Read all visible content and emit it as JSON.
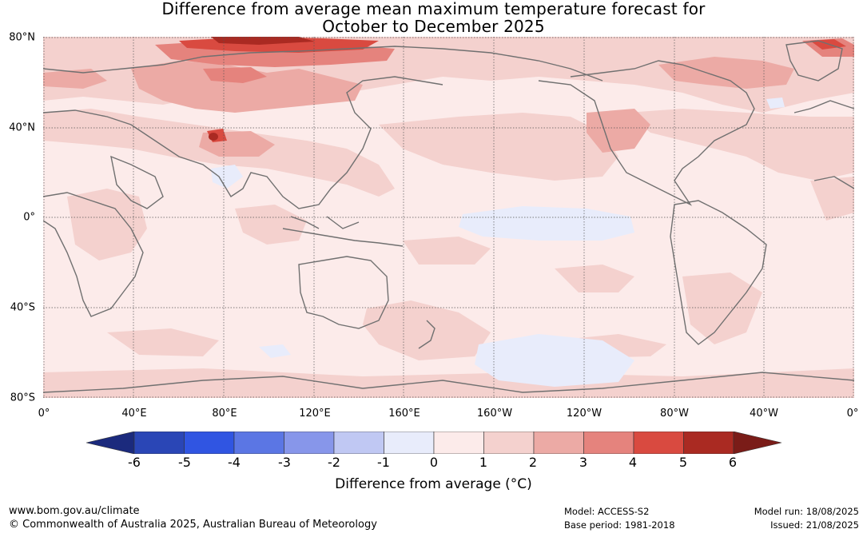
{
  "title": {
    "line1": "Difference from average mean maximum temperature forecast for",
    "line2": "October to December 2025"
  },
  "map": {
    "latitude_labels": [
      "80°N",
      "40°N",
      "0°",
      "40°S",
      "80°S"
    ],
    "longitude_labels": [
      "0°",
      "40°E",
      "80°E",
      "120°E",
      "160°E",
      "160°W",
      "120°W",
      "80°W",
      "40°W",
      "0°"
    ],
    "projection": "equirectangular, Pacific-centred (0° to 360° east)",
    "land_outline_color": "#707070",
    "gridlines": true
  },
  "colorbar": {
    "ticks": [
      "-6",
      "-5",
      "-4",
      "-3",
      "-2",
      "-1",
      "0",
      "1",
      "2",
      "3",
      "4",
      "5",
      "6"
    ],
    "bins": [
      {
        "from": -7,
        "to": -6,
        "color": "#1b2a7d"
      },
      {
        "from": -6,
        "to": -5,
        "color": "#2a46b6"
      },
      {
        "from": -5,
        "to": -4,
        "color": "#3055e2"
      },
      {
        "from": -4,
        "to": -3,
        "color": "#5b76e4"
      },
      {
        "from": -3,
        "to": -2,
        "color": "#8796ea"
      },
      {
        "from": -2,
        "to": -1,
        "color": "#c0c8f3"
      },
      {
        "from": -1,
        "to": 0,
        "color": "#e8ecfb"
      },
      {
        "from": 0,
        "to": 1,
        "color": "#fcebea"
      },
      {
        "from": 1,
        "to": 2,
        "color": "#f4d1ce"
      },
      {
        "from": 2,
        "to": 3,
        "color": "#ecaaa5"
      },
      {
        "from": 3,
        "to": 4,
        "color": "#e5837d"
      },
      {
        "from": 4,
        "to": 5,
        "color": "#d94a40"
      },
      {
        "from": 5,
        "to": 6,
        "color": "#aa2a22"
      },
      {
        "from": 6,
        "to": 7,
        "color": "#7a1c18"
      }
    ],
    "label": "Difference from average (°C)"
  },
  "footer": {
    "website": "www.bom.gov.au/climate",
    "copyright": "© Commonwealth of Australia 2025, Australian Bureau of Meteorology",
    "model": "Model: ACCESS-S2",
    "base_period": "Base period: 1981-2018",
    "model_run": "Model run: 18/08/2025",
    "issued": "Issued: 21/08/2025"
  }
}
